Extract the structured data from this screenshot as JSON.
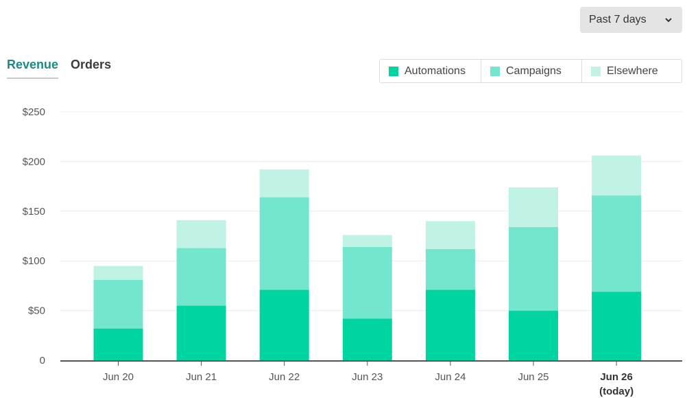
{
  "range_select": {
    "label": "Past 7 days"
  },
  "tabs": [
    {
      "label": "Revenue",
      "active": true
    },
    {
      "label": "Orders",
      "active": false
    }
  ],
  "chart_data": {
    "type": "bar",
    "stacked": true,
    "categories": [
      "Jun 20",
      "Jun 21",
      "Jun 22",
      "Jun 23",
      "Jun 24",
      "Jun 25",
      "Jun 26"
    ],
    "category_sublabels": [
      "",
      "",
      "",
      "",
      "",
      "",
      "(today)"
    ],
    "highlight_category": "Jun 26",
    "series": [
      {
        "name": "Automations",
        "color": "#00d5a2",
        "values": [
          32,
          55,
          71,
          42,
          71,
          50,
          69
        ]
      },
      {
        "name": "Campaigns",
        "color": "#74e6ce",
        "values": [
          49,
          58,
          93,
          72,
          41,
          84,
          97
        ]
      },
      {
        "name": "Elsewhere",
        "color": "#c0f2e6",
        "values": [
          14,
          28,
          28,
          12,
          28,
          40,
          40
        ]
      }
    ],
    "ylim": [
      0,
      250
    ],
    "yticks": [
      "0",
      "$50",
      "$100",
      "$150",
      "$200",
      "$250"
    ],
    "ytick_values": [
      0,
      50,
      100,
      150,
      200,
      250
    ],
    "grid": true,
    "legend_position": "top-right"
  }
}
